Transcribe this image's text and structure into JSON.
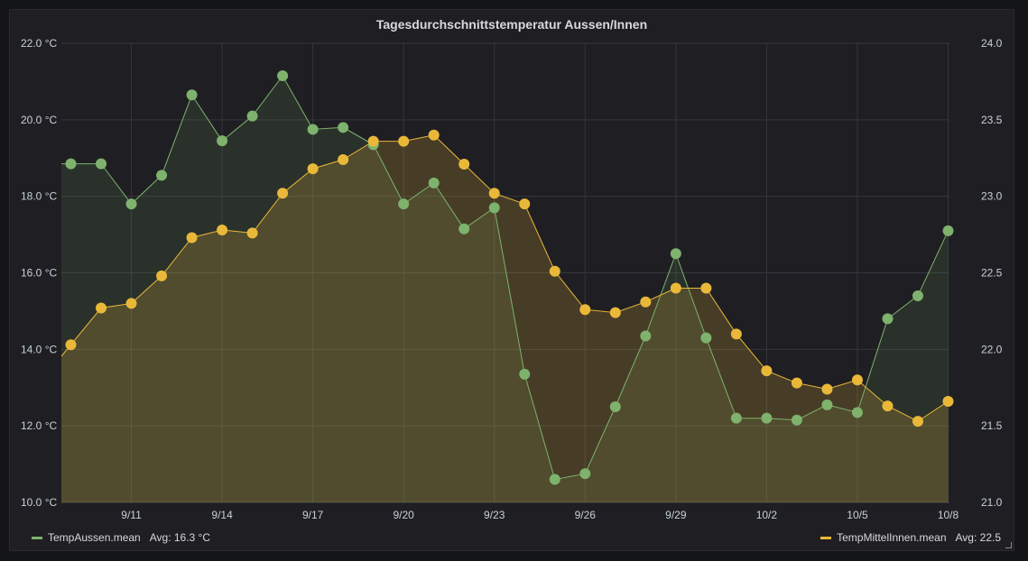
{
  "panel": {
    "title": "Tagesdurchschnittstemperatur Aussen/Innen"
  },
  "colors": {
    "aussen": "#7eb26d",
    "innen": "#eab839",
    "grid": "#34363c",
    "background": "#1f1f23"
  },
  "legend": {
    "items": [
      {
        "name": "TempAussen.mean",
        "avg_label": "Avg: 16.3 °C",
        "color": "#7eb26d"
      },
      {
        "name": "TempMittelInnen.mean",
        "avg_label": "Avg: 22.5",
        "color": "#eab839"
      }
    ]
  },
  "chart_data": {
    "type": "line",
    "title": "Tagesdurchschnittstemperatur Aussen/Innen",
    "x": [
      "9/9",
      "9/10",
      "9/11",
      "9/12",
      "9/13",
      "9/14",
      "9/15",
      "9/16",
      "9/17",
      "9/18",
      "9/19",
      "9/20",
      "9/21",
      "9/22",
      "9/23",
      "9/24",
      "9/25",
      "9/26",
      "9/27",
      "9/28",
      "9/29",
      "9/30",
      "10/1",
      "10/2",
      "10/3",
      "10/4",
      "10/5",
      "10/6",
      "10/7",
      "10/8"
    ],
    "x_tick_labels": [
      "9/11",
      "9/14",
      "9/17",
      "9/20",
      "9/23",
      "9/26",
      "9/29",
      "10/2",
      "10/5",
      "10/8"
    ],
    "left_axis": {
      "ticks": [
        "10.0 °C",
        "12.0 °C",
        "14.0 °C",
        "16.0 °C",
        "18.0 °C",
        "20.0 °C",
        "22.0 °C"
      ],
      "range": [
        10,
        22
      ]
    },
    "right_axis": {
      "ticks": [
        "21.0",
        "21.5",
        "22.0",
        "22.5",
        "23.0",
        "23.5",
        "24.0"
      ],
      "range": [
        21,
        24
      ]
    },
    "series": [
      {
        "name": "TempAussen.mean",
        "axis": "left",
        "values": [
          18.85,
          18.85,
          17.8,
          18.55,
          20.65,
          19.45,
          20.1,
          21.15,
          19.75,
          19.8,
          19.35,
          17.8,
          18.35,
          17.15,
          17.7,
          13.35,
          10.6,
          10.75,
          12.5,
          14.35,
          16.5,
          14.3,
          12.2,
          12.2,
          12.15,
          12.55,
          12.35,
          14.8,
          15.4,
          17.1
        ]
      },
      {
        "name": "TempMittelInnen.mean",
        "axis": "right",
        "values": [
          22.03,
          22.27,
          22.3,
          22.48,
          22.73,
          22.78,
          22.76,
          23.02,
          23.18,
          23.24,
          23.36,
          23.36,
          23.4,
          23.21,
          23.02,
          22.95,
          22.51,
          22.26,
          22.24,
          22.31,
          22.4,
          22.4,
          22.1,
          21.86,
          21.78,
          21.74,
          21.8,
          21.63,
          21.53,
          21.66
        ]
      }
    ],
    "grid": true,
    "legend_position": "bottom"
  }
}
